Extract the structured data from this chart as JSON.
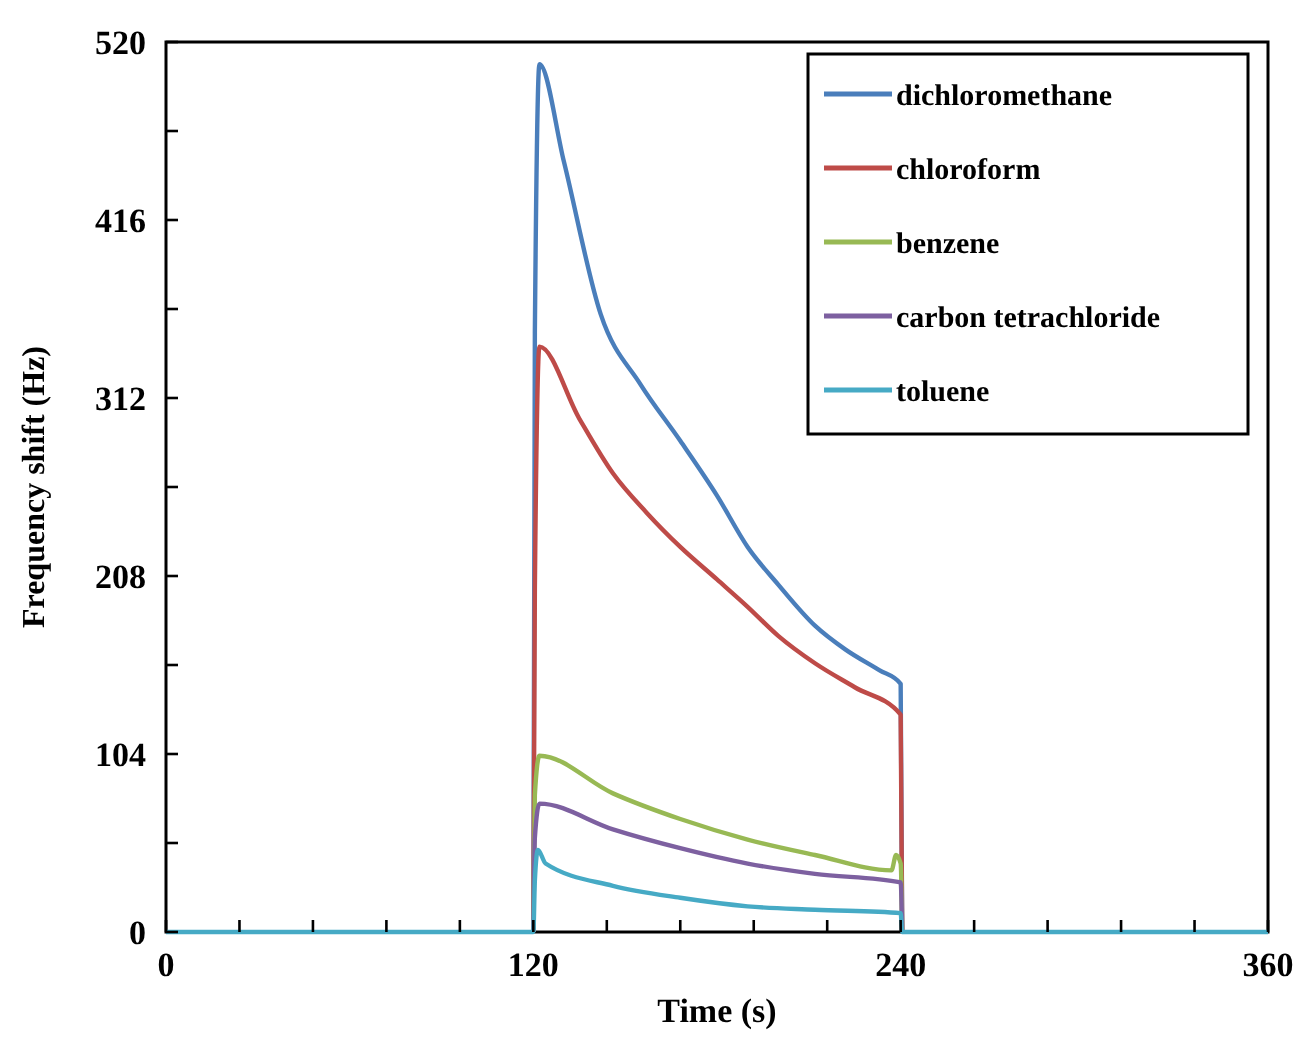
{
  "chart_data": {
    "type": "line",
    "xlabel": "Time (s)",
    "ylabel": "Frequency shift (Hz)",
    "xlim": [
      0,
      360
    ],
    "ylim": [
      0,
      520
    ],
    "xticks": [
      0,
      {
        "value": 24,
        "label": null
      },
      {
        "value": 48,
        "label": null
      },
      {
        "value": 72,
        "label": null
      },
      {
        "value": 96,
        "label": null
      },
      120,
      {
        "value": 144,
        "label": null
      },
      {
        "value": 168,
        "label": null
      },
      {
        "value": 192,
        "label": null
      },
      {
        "value": 216,
        "label": null
      },
      240,
      {
        "value": 264,
        "label": null
      },
      {
        "value": 288,
        "label": null
      },
      {
        "value": 312,
        "label": null
      },
      {
        "value": 336,
        "label": null
      },
      360
    ],
    "yticks": [
      0,
      {
        "value": 52,
        "label": null
      },
      104,
      {
        "value": 156,
        "label": null
      },
      208,
      {
        "value": 260,
        "label": null
      },
      312,
      {
        "value": 364,
        "label": null
      },
      416,
      {
        "value": 468,
        "label": null
      },
      520
    ],
    "grid": false,
    "legend": "top right",
    "marker": "none",
    "line_style": "solid",
    "series": [
      {
        "name": "dichloromethane",
        "color": "#4a7ebb",
        "x": [
          120,
          120.5,
          122,
          130,
          142,
          155,
          168,
          180,
          190,
          200,
          212,
          222,
          233,
          240,
          240.5
        ],
        "values": [
          0,
          350,
          507,
          450,
          361,
          320,
          287,
          255,
          225,
          203,
          179,
          165,
          153,
          145,
          0
        ]
      },
      {
        "name": "chloroform",
        "color": "#be4b48",
        "x": [
          120,
          120.5,
          122,
          135,
          146,
          157,
          168,
          180,
          190,
          200,
          212,
          225,
          240,
          240.5
        ],
        "values": [
          0,
          200,
          342,
          300,
          268,
          245,
          225,
          206,
          190,
          173,
          157,
          143,
          127,
          0
        ]
      },
      {
        "name": "benzene",
        "color": "#98b954",
        "x": [
          120,
          120.5,
          122,
          146,
          168,
          190,
          212,
          237,
          238.5,
          240,
          240.5
        ],
        "values": [
          0,
          80,
          103,
          81,
          66,
          54,
          45,
          36,
          45,
          40,
          0
        ]
      },
      {
        "name": "carbon tetrachloride",
        "color": "#7d60a0",
        "x": [
          120,
          120.5,
          122,
          146,
          168,
          190,
          212,
          240,
          240.5
        ],
        "values": [
          0,
          55,
          75,
          60,
          49,
          40,
          34,
          29,
          0
        ]
      },
      {
        "name": "toluene",
        "color": "#46aac5",
        "x": [
          0,
          120,
          120.5,
          121.5,
          124,
          146,
          168,
          190,
          212,
          240,
          240.5,
          250,
          360
        ],
        "values": [
          0,
          0,
          30,
          48,
          40,
          27,
          20,
          15,
          13,
          11,
          0,
          0,
          0
        ]
      }
    ]
  }
}
